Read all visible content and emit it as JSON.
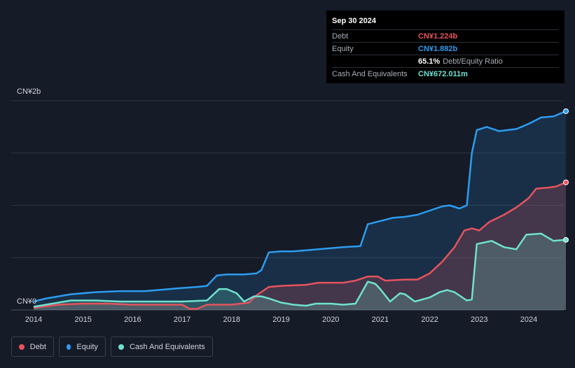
{
  "tooltip": {
    "date": "Sep 30 2024",
    "rows": [
      {
        "label": "Debt",
        "value": "CN¥1.224b",
        "color": "#e5535d"
      },
      {
        "label": "Equity",
        "value": "CN¥1.882b",
        "color": "#2d9cf0"
      },
      {
        "label": "",
        "value": "65.1%",
        "sub": "Debt/Equity Ratio",
        "color": "#ffffff"
      },
      {
        "label": "Cash And Equivalents",
        "value": "CN¥672.011m",
        "color": "#6fe2cf"
      }
    ]
  },
  "legend": [
    {
      "name": "Debt",
      "color": "#e5535d"
    },
    {
      "name": "Equity",
      "color": "#2d9cf0"
    },
    {
      "name": "Cash And Equivalents",
      "color": "#6fe2cf"
    }
  ],
  "chart_data": {
    "type": "area",
    "y_unit": "CN¥ billions",
    "ylim": [
      0,
      2.0
    ],
    "y_tick_labels": [
      {
        "value": 2.0,
        "label": "CN¥2b"
      },
      {
        "value": 0,
        "label": "CN¥0"
      }
    ],
    "gridlines": [
      0,
      0.5,
      1.0,
      1.5,
      2.0
    ],
    "xlim": [
      2013.5,
      2024.75
    ],
    "x_ticks": [
      2014,
      2015,
      2016,
      2017,
      2018,
      2019,
      2020,
      2021,
      2022,
      2023,
      2024
    ],
    "legend_position": "bottom-left",
    "series": [
      {
        "name": "Equity",
        "color": "#2d9cf0",
        "points": [
          [
            2014.0,
            0.08
          ],
          [
            2014.25,
            0.11
          ],
          [
            2014.75,
            0.15
          ],
          [
            2015.25,
            0.17
          ],
          [
            2015.75,
            0.18
          ],
          [
            2016.25,
            0.18
          ],
          [
            2016.75,
            0.2
          ],
          [
            2017.0,
            0.21
          ],
          [
            2017.3,
            0.22
          ],
          [
            2017.5,
            0.23
          ],
          [
            2017.7,
            0.33
          ],
          [
            2017.9,
            0.34
          ],
          [
            2018.25,
            0.34
          ],
          [
            2018.5,
            0.35
          ],
          [
            2018.6,
            0.38
          ],
          [
            2018.75,
            0.55
          ],
          [
            2019.0,
            0.56
          ],
          [
            2019.25,
            0.56
          ],
          [
            2019.75,
            0.58
          ],
          [
            2020.0,
            0.59
          ],
          [
            2020.25,
            0.6
          ],
          [
            2020.6,
            0.61
          ],
          [
            2020.75,
            0.82
          ],
          [
            2021.0,
            0.85
          ],
          [
            2021.25,
            0.88
          ],
          [
            2021.5,
            0.89
          ],
          [
            2021.75,
            0.91
          ],
          [
            2022.0,
            0.95
          ],
          [
            2022.25,
            0.99
          ],
          [
            2022.4,
            1.0
          ],
          [
            2022.6,
            0.97
          ],
          [
            2022.75,
            1.0
          ],
          [
            2022.85,
            1.5
          ],
          [
            2022.95,
            1.72
          ],
          [
            2023.15,
            1.75
          ],
          [
            2023.4,
            1.71
          ],
          [
            2023.75,
            1.73
          ],
          [
            2024.0,
            1.78
          ],
          [
            2024.25,
            1.84
          ],
          [
            2024.5,
            1.85
          ],
          [
            2024.75,
            1.9
          ]
        ]
      },
      {
        "name": "Debt",
        "color": "#e5535d",
        "points": [
          [
            2014.0,
            0.02
          ],
          [
            2014.5,
            0.05
          ],
          [
            2015.0,
            0.06
          ],
          [
            2015.5,
            0.06
          ],
          [
            2016.0,
            0.05
          ],
          [
            2016.5,
            0.05
          ],
          [
            2017.0,
            0.05
          ],
          [
            2017.15,
            0.01
          ],
          [
            2017.3,
            0.01
          ],
          [
            2017.5,
            0.05
          ],
          [
            2018.0,
            0.05
          ],
          [
            2018.35,
            0.07
          ],
          [
            2018.5,
            0.14
          ],
          [
            2018.75,
            0.22
          ],
          [
            2019.0,
            0.23
          ],
          [
            2019.5,
            0.24
          ],
          [
            2019.75,
            0.26
          ],
          [
            2020.25,
            0.26
          ],
          [
            2020.5,
            0.28
          ],
          [
            2020.75,
            0.32
          ],
          [
            2020.95,
            0.32
          ],
          [
            2021.1,
            0.28
          ],
          [
            2021.5,
            0.29
          ],
          [
            2021.75,
            0.29
          ],
          [
            2022.0,
            0.35
          ],
          [
            2022.25,
            0.46
          ],
          [
            2022.5,
            0.6
          ],
          [
            2022.7,
            0.76
          ],
          [
            2022.85,
            0.78
          ],
          [
            2023.0,
            0.76
          ],
          [
            2023.2,
            0.84
          ],
          [
            2023.5,
            0.91
          ],
          [
            2023.75,
            0.98
          ],
          [
            2024.0,
            1.07
          ],
          [
            2024.15,
            1.16
          ],
          [
            2024.4,
            1.17
          ],
          [
            2024.55,
            1.18
          ],
          [
            2024.75,
            1.22
          ]
        ]
      },
      {
        "name": "Cash And Equivalents",
        "color": "#6fe2cf",
        "points": [
          [
            2014.0,
            0.03
          ],
          [
            2014.5,
            0.07
          ],
          [
            2014.75,
            0.09
          ],
          [
            2015.0,
            0.09
          ],
          [
            2015.25,
            0.09
          ],
          [
            2015.75,
            0.08
          ],
          [
            2016.25,
            0.08
          ],
          [
            2016.75,
            0.08
          ],
          [
            2017.0,
            0.08
          ],
          [
            2017.5,
            0.09
          ],
          [
            2017.75,
            0.2
          ],
          [
            2017.9,
            0.2
          ],
          [
            2018.1,
            0.16
          ],
          [
            2018.25,
            0.08
          ],
          [
            2018.45,
            0.13
          ],
          [
            2018.6,
            0.13
          ],
          [
            2018.75,
            0.11
          ],
          [
            2019.0,
            0.07
          ],
          [
            2019.25,
            0.05
          ],
          [
            2019.5,
            0.04
          ],
          [
            2019.7,
            0.06
          ],
          [
            2020.0,
            0.06
          ],
          [
            2020.25,
            0.05
          ],
          [
            2020.5,
            0.06
          ],
          [
            2020.75,
            0.27
          ],
          [
            2020.9,
            0.25
          ],
          [
            2021.0,
            0.2
          ],
          [
            2021.2,
            0.08
          ],
          [
            2021.4,
            0.16
          ],
          [
            2021.5,
            0.15
          ],
          [
            2021.7,
            0.08
          ],
          [
            2022.0,
            0.12
          ],
          [
            2022.2,
            0.17
          ],
          [
            2022.35,
            0.19
          ],
          [
            2022.5,
            0.17
          ],
          [
            2022.75,
            0.09
          ],
          [
            2022.85,
            0.1
          ],
          [
            2022.95,
            0.63
          ],
          [
            2023.25,
            0.66
          ],
          [
            2023.5,
            0.6
          ],
          [
            2023.75,
            0.58
          ],
          [
            2023.95,
            0.72
          ],
          [
            2024.25,
            0.73
          ],
          [
            2024.5,
            0.66
          ],
          [
            2024.75,
            0.67
          ]
        ]
      }
    ]
  }
}
